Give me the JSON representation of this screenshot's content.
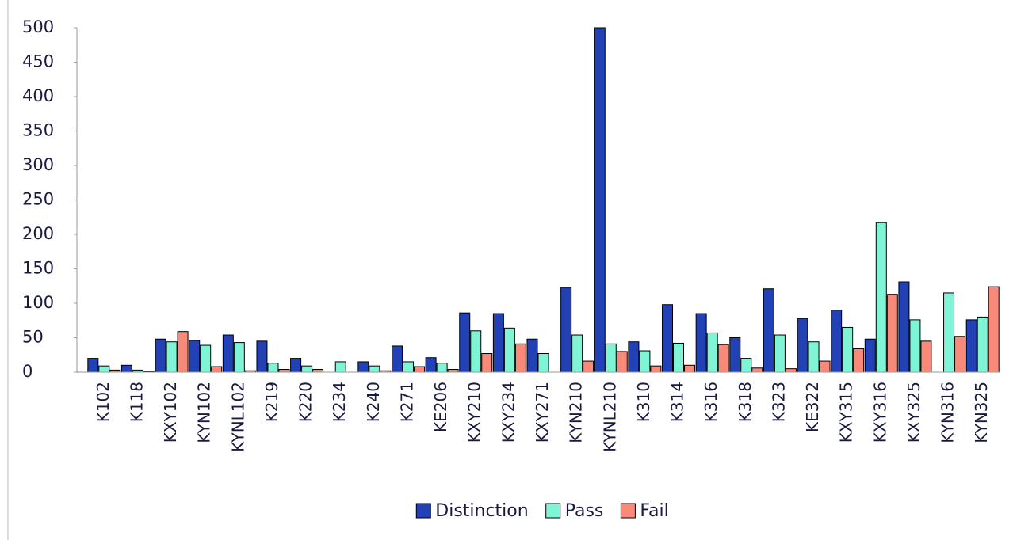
{
  "chart_data": {
    "type": "bar",
    "categories": [
      "K102",
      "K118",
      "KXY102",
      "KYN102",
      "KYNL102",
      "K219",
      "K220",
      "K234",
      "K240",
      "K271",
      "KE206",
      "KXY210",
      "KXY234",
      "KXY271",
      "KYN210",
      "KYNL210",
      "K310",
      "K314",
      "K316",
      "K318",
      "K323",
      "KE322",
      "KXY315",
      "KXY316",
      "KXY325",
      "KYN316",
      "KYN325"
    ],
    "series": [
      {
        "name": "Distinction",
        "color": "#2141b5",
        "values": [
          20,
          10,
          48,
          46,
          54,
          45,
          20,
          0,
          15,
          38,
          21,
          86,
          85,
          48,
          123,
          500,
          44,
          98,
          85,
          50,
          121,
          78,
          90,
          48,
          131,
          0,
          76
        ]
      },
      {
        "name": "Pass",
        "color": "#7ff5d6",
        "values": [
          9,
          3,
          44,
          39,
          43,
          13,
          9,
          15,
          9,
          15,
          13,
          60,
          64,
          27,
          54,
          41,
          31,
          42,
          57,
          20,
          54,
          44,
          65,
          217,
          76,
          115,
          80
        ]
      },
      {
        "name": "Fail",
        "color": "#f98a7a",
        "values": [
          3,
          1,
          59,
          8,
          2,
          4,
          4,
          0,
          2,
          8,
          4,
          27,
          41,
          0,
          16,
          30,
          9,
          10,
          40,
          6,
          5,
          16,
          34,
          113,
          45,
          52,
          124
        ]
      }
    ],
    "ylim": [
      0,
      500
    ],
    "yticks": [
      0,
      50,
      100,
      150,
      200,
      250,
      300,
      350,
      400,
      450,
      500
    ],
    "legend": "bottom"
  }
}
